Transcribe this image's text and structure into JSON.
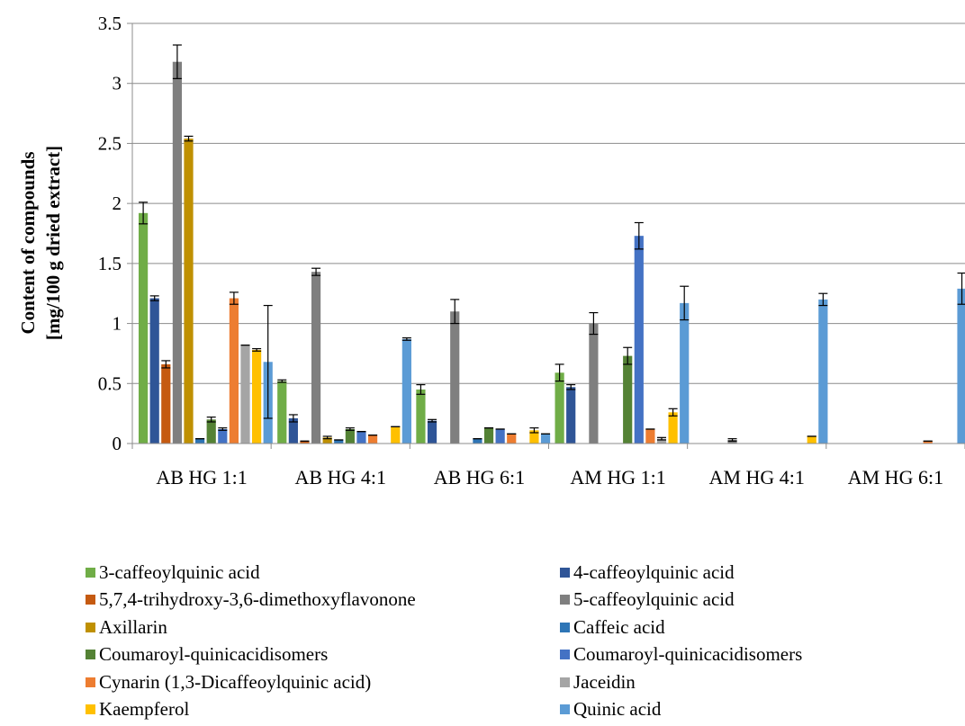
{
  "chart_data": {
    "type": "bar",
    "title": "",
    "xlabel": "",
    "ylabel_line1": "Content of compounds",
    "ylabel_line2": "[mg/100 g dried extract]",
    "ylim": [
      0,
      3.5
    ],
    "yticks": [
      "0",
      "0.5",
      "1",
      "1.5",
      "2",
      "2.5",
      "3",
      "3.5"
    ],
    "ytick_values": [
      0,
      0.5,
      1,
      1.5,
      2,
      2.5,
      3,
      3.5
    ],
    "grid": true,
    "legend_position": "bottom",
    "categories": [
      "AB HG 1:1",
      "AB HG 4:1",
      "AB HG 6:1",
      "AM HG 1:1",
      "AM HG 4:1",
      "AM HG 6:1"
    ],
    "series": [
      {
        "name": "3-caffeoylquinic acid",
        "color": "#70AD47",
        "values": [
          1.92,
          0.52,
          0.45,
          0.59,
          0,
          0
        ],
        "errors": [
          0.09,
          0.01,
          0.04,
          0.07,
          0,
          0
        ]
      },
      {
        "name": "4-caffeoylquinic acid",
        "color": "#2F5597",
        "values": [
          1.21,
          0.21,
          0.19,
          0.47,
          0,
          0
        ],
        "errors": [
          0.02,
          0.03,
          0.01,
          0.02,
          0,
          0
        ]
      },
      {
        "name": "5,7,4-trihydroxy-3,6-dimethoxyflavonone",
        "color": "#C55A11",
        "values": [
          0.66,
          0.02,
          0,
          0,
          0,
          0
        ],
        "errors": [
          0.03,
          0,
          0,
          0,
          0,
          0
        ]
      },
      {
        "name": "5-caffeoylquinic acid",
        "color": "#7F7F7F",
        "values": [
          3.18,
          1.43,
          1.1,
          1.0,
          0.03,
          0
        ],
        "errors": [
          0.14,
          0.03,
          0.1,
          0.09,
          0.01,
          0
        ]
      },
      {
        "name": "Axillarin",
        "color": "#BF9000",
        "values": [
          2.54,
          0.05,
          0,
          0,
          0,
          0
        ],
        "errors": [
          0.02,
          0.01,
          0,
          0,
          0,
          0
        ]
      },
      {
        "name": "Caffeic acid",
        "color": "#2E75B6",
        "values": [
          0.04,
          0.03,
          0.04,
          0,
          0,
          0
        ],
        "errors": [
          0,
          0,
          0,
          0,
          0,
          0
        ]
      },
      {
        "name": "Coumaroyl-quinicacidisomers",
        "color": "#548235",
        "values": [
          0.2,
          0.12,
          0.13,
          0.73,
          0,
          0
        ],
        "errors": [
          0.02,
          0.01,
          0,
          0.07,
          0,
          0
        ]
      },
      {
        "name": "Coumaroyl-quinicacidisomers",
        "color": "#4472C4",
        "values": [
          0.12,
          0.1,
          0.12,
          1.73,
          0,
          0
        ],
        "errors": [
          0.01,
          0,
          0,
          0.11,
          0,
          0
        ]
      },
      {
        "name": "Cynarin (1,3-Dicaffeoylquinic acid)",
        "color": "#ED7D31",
        "values": [
          1.21,
          0.07,
          0.08,
          0.12,
          0,
          0.02
        ],
        "errors": [
          0.05,
          0,
          0,
          0,
          0,
          0
        ]
      },
      {
        "name": "Jaceidin",
        "color": "#A5A5A5",
        "values": [
          0.82,
          0,
          0,
          0.04,
          0,
          0
        ],
        "errors": [
          0,
          0,
          0,
          0.01,
          0,
          0
        ]
      },
      {
        "name": "Kaempferol",
        "color": "#FFC000",
        "values": [
          0.78,
          0.14,
          0.11,
          0.26,
          0.06,
          0
        ],
        "errors": [
          0.01,
          0,
          0.02,
          0.03,
          0,
          0
        ]
      },
      {
        "name": "Quinic acid",
        "color": "#5B9BD5",
        "values": [
          0.68,
          0.87,
          0.08,
          1.17,
          1.2,
          1.29
        ],
        "errors": [
          0.47,
          0.01,
          0,
          0.14,
          0.05,
          0.13
        ]
      }
    ]
  }
}
